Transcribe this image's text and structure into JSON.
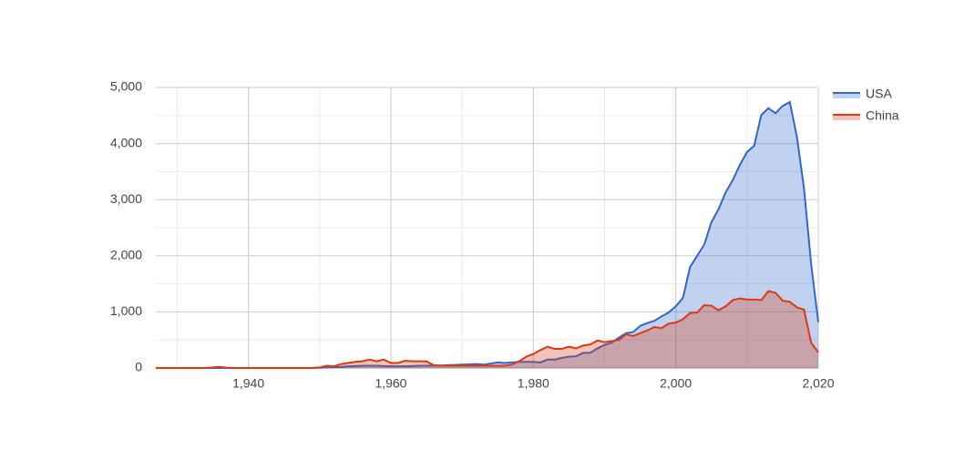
{
  "chart_data": {
    "type": "area",
    "x": [
      1927,
      1928,
      1929,
      1930,
      1931,
      1932,
      1933,
      1934,
      1935,
      1936,
      1937,
      1938,
      1939,
      1940,
      1941,
      1942,
      1943,
      1944,
      1945,
      1946,
      1947,
      1948,
      1949,
      1950,
      1951,
      1952,
      1953,
      1954,
      1955,
      1956,
      1957,
      1958,
      1959,
      1960,
      1961,
      1962,
      1963,
      1964,
      1965,
      1966,
      1967,
      1968,
      1969,
      1970,
      1971,
      1972,
      1973,
      1974,
      1975,
      1976,
      1977,
      1978,
      1979,
      1980,
      1981,
      1982,
      1983,
      1984,
      1985,
      1986,
      1987,
      1988,
      1989,
      1990,
      1991,
      1992,
      1993,
      1994,
      1995,
      1996,
      1997,
      1998,
      1999,
      2000,
      2001,
      2002,
      2003,
      2004,
      2005,
      2006,
      2007,
      2008,
      2009,
      2010,
      2011,
      2012,
      2013,
      2014,
      2015,
      2016,
      2017,
      2018,
      2019,
      2020
    ],
    "series": [
      {
        "name": "USA",
        "color": "#3366cc",
        "values": [
          0,
          0,
          0,
          0,
          0,
          0,
          0,
          0,
          0,
          0,
          0,
          0,
          0,
          0,
          0,
          0,
          0,
          0,
          0,
          0,
          0,
          0,
          0,
          5,
          10,
          15,
          20,
          30,
          35,
          40,
          40,
          40,
          35,
          30,
          30,
          30,
          35,
          40,
          40,
          45,
          45,
          50,
          55,
          60,
          65,
          70,
          60,
          80,
          100,
          90,
          100,
          110,
          110,
          110,
          100,
          150,
          150,
          180,
          200,
          210,
          270,
          270,
          350,
          410,
          450,
          540,
          620,
          640,
          750,
          800,
          840,
          920,
          990,
          1100,
          1250,
          1800,
          2000,
          2200,
          2600,
          2830,
          3130,
          3350,
          3620,
          3850,
          3960,
          4510,
          4630,
          4540,
          4670,
          4740,
          4120,
          3200,
          1850,
          820
        ]
      },
      {
        "name": "China",
        "color": "#dc3912",
        "values": [
          0,
          0,
          0,
          0,
          0,
          0,
          0,
          0,
          10,
          20,
          5,
          0,
          0,
          0,
          0,
          0,
          0,
          0,
          0,
          0,
          0,
          0,
          0,
          10,
          40,
          30,
          70,
          90,
          110,
          120,
          150,
          120,
          150,
          90,
          90,
          130,
          120,
          120,
          120,
          50,
          40,
          40,
          40,
          40,
          40,
          40,
          40,
          40,
          40,
          40,
          60,
          120,
          200,
          250,
          320,
          380,
          340,
          340,
          380,
          350,
          400,
          420,
          490,
          460,
          480,
          500,
          600,
          570,
          620,
          670,
          730,
          710,
          790,
          810,
          870,
          980,
          990,
          1120,
          1110,
          1030,
          1100,
          1210,
          1240,
          1220,
          1220,
          1210,
          1370,
          1340,
          1200,
          1180,
          1080,
          1040,
          450,
          280
        ]
      }
    ],
    "xlim": [
      1927,
      2020
    ],
    "xticks": [
      {
        "value": 1940,
        "label": "1,940"
      },
      {
        "value": 1960,
        "label": "1,960"
      },
      {
        "value": 1980,
        "label": "1,980"
      },
      {
        "value": 2000,
        "label": "2,000"
      },
      {
        "value": 2020,
        "label": "2,020"
      }
    ],
    "ylim": [
      0,
      5000
    ],
    "yticks": [
      0,
      {
        "value": 1000,
        "label": "1,000"
      },
      {
        "value": 2000,
        "label": "2,000"
      },
      {
        "value": 3000,
        "label": "3,000"
      },
      {
        "value": 4000,
        "label": "4,000"
      },
      {
        "value": 5000,
        "label": "5,000"
      }
    ],
    "grid": true,
    "legend": "right"
  }
}
